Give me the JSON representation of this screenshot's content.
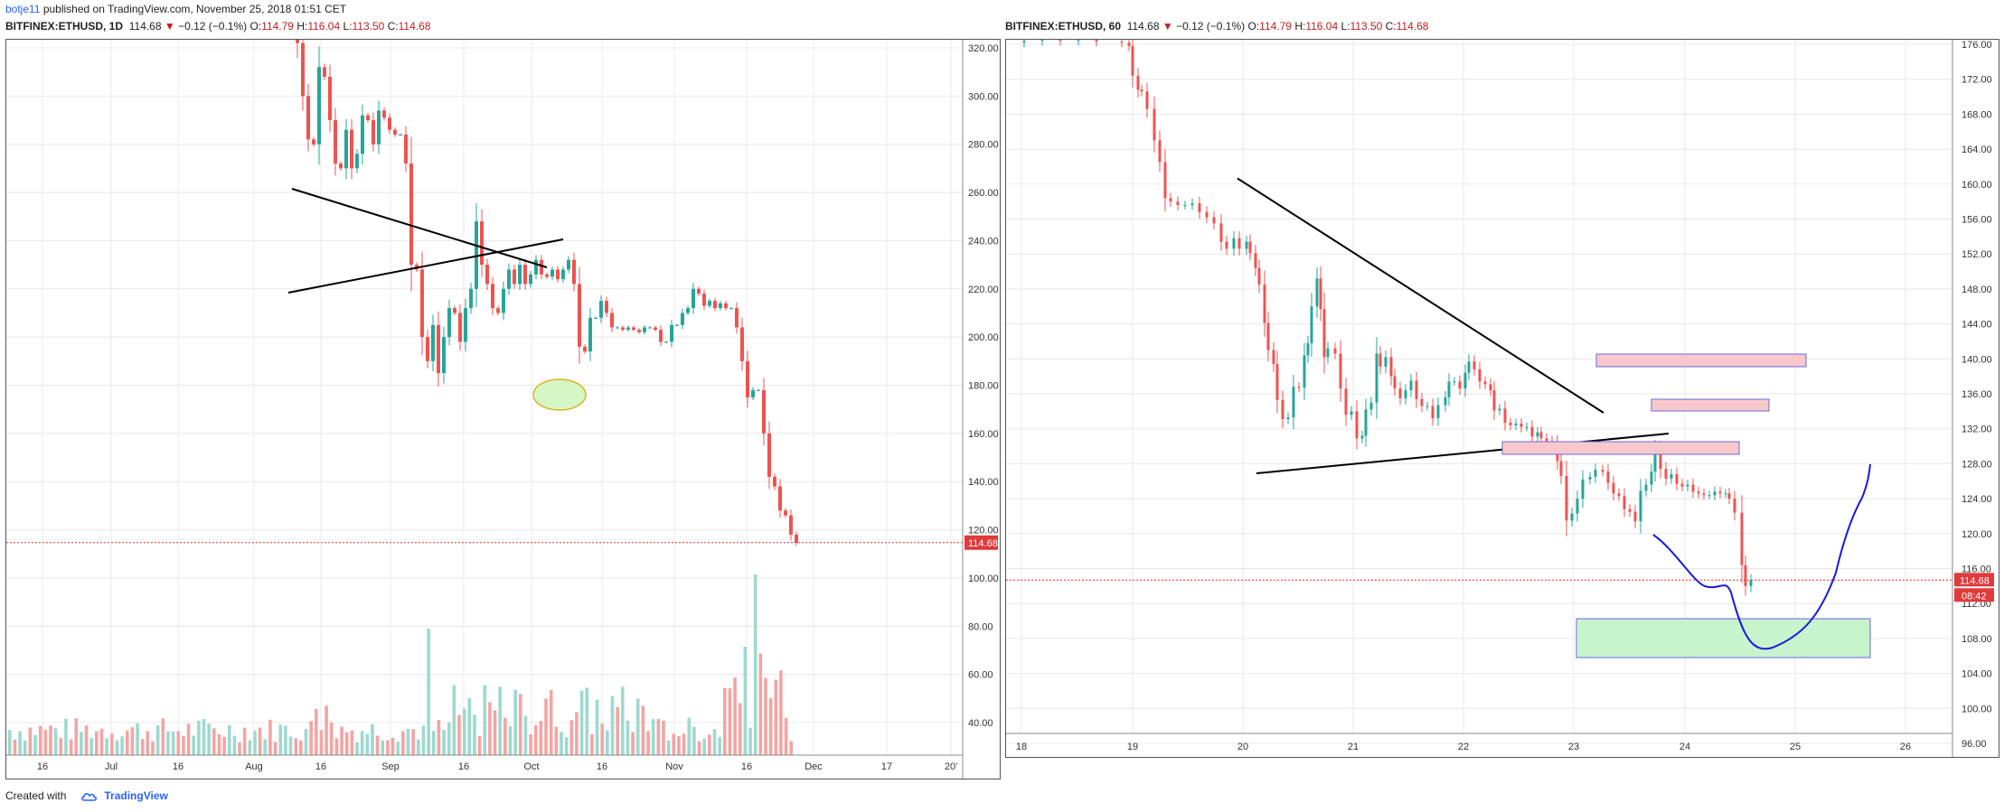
{
  "header": {
    "author": "botje11",
    "published": " published on TradingView.com, November 25, 2018 01:51 CET"
  },
  "left_panel": {
    "symbol": "BITFINEX:ETHUSD, 1D",
    "last": "114.68",
    "change": "−0.12 (−0.1%)",
    "o_label": "O:",
    "o": "114.79",
    "h_label": "H:",
    "h": "116.04",
    "l_label": "L:",
    "l": "113.50",
    "c_label": "C:",
    "c": "114.68",
    "price_ticks": [
      "320.00",
      "300.00",
      "280.00",
      "260.00",
      "240.00",
      "220.00",
      "200.00",
      "180.00",
      "160.00",
      "140.00",
      "120.00",
      "100.00",
      "80.00",
      "60.00",
      "40.00"
    ],
    "time_ticks": [
      "16",
      "Jul",
      "16",
      "Aug",
      "16",
      "Sep",
      "16",
      "Oct",
      "16",
      "Nov",
      "16",
      "Dec",
      "17",
      "20'"
    ],
    "price_label": "114.68"
  },
  "right_panel": {
    "symbol": "BITFINEX:ETHUSD, 60",
    "last": "114.68",
    "change": "−0.12 (−0.1%)",
    "o_label": "O:",
    "o": "114.79",
    "h_label": "H:",
    "h": "116.04",
    "l_label": "L:",
    "l": "113.50",
    "c_label": "C:",
    "c": "114.68",
    "price_ticks": [
      "176.00",
      "172.00",
      "168.00",
      "164.00",
      "160.00",
      "156.00",
      "152.00",
      "148.00",
      "144.00",
      "140.00",
      "136.00",
      "132.00",
      "128.00",
      "124.00",
      "120.00",
      "116.00",
      "112.00",
      "108.00",
      "104.00",
      "100.00",
      "96.00"
    ],
    "time_ticks": [
      "18",
      "19",
      "20",
      "21",
      "22",
      "23",
      "24",
      "25",
      "26"
    ],
    "price_label": "114.68",
    "countdown": "08:42"
  },
  "footer": {
    "created_with": "Created with",
    "brand": "TradingView"
  },
  "colors": {
    "up": "#26a69a",
    "down": "#ef5350",
    "grid": "#e8e8e8",
    "price_line": "#e03030",
    "trend_line": "#000000",
    "curve": "#1a1adb",
    "resistance_fill": "#f8c8cc",
    "support_fill": "#c7f3cd",
    "circle_fill": "#d4f7c5",
    "circle_stroke": "#e0b020"
  }
}
